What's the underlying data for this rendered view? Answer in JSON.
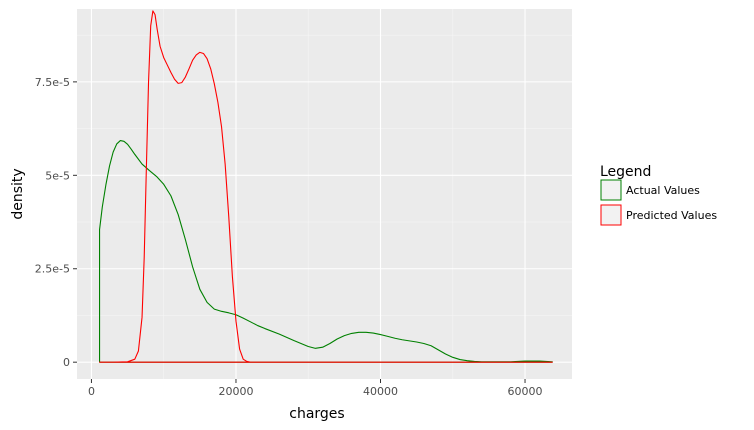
{
  "chart_data": {
    "type": "line",
    "xlabel": "charges",
    "ylabel": "density",
    "xlim": [
      -2000,
      66500
    ],
    "ylim": [
      -4.5e-06,
      9.45e-05
    ],
    "x_ticks": [
      0,
      20000,
      40000,
      60000
    ],
    "x_tick_labels": [
      "0",
      "20000",
      "40000",
      "60000"
    ],
    "y_ticks": [
      0,
      2.5e-05,
      5e-05,
      7.5e-05
    ],
    "y_tick_labels": [
      "0",
      "2.5e-5",
      "5e-5",
      "7.5e-5"
    ],
    "grid": true,
    "legend_position": "right",
    "legend": {
      "title": "Legend",
      "entries": [
        {
          "label": "Actual Values",
          "color": "#008000"
        },
        {
          "label": "Predicted Values",
          "color": "#ff0000"
        }
      ]
    },
    "series": [
      {
        "name": "Actual Values",
        "color": "#008000",
        "x": [
          1122,
          1122,
          1500,
          2000,
          2500,
          3000,
          3500,
          4000,
          4500,
          5000,
          5500,
          6000,
          7000,
          8000,
          9000,
          10000,
          11000,
          12000,
          13000,
          14000,
          15000,
          16000,
          17000,
          18000,
          19000,
          20000,
          21000,
          22000,
          23000,
          24000,
          26000,
          28000,
          30000,
          31000,
          32000,
          33000,
          34000,
          35000,
          36000,
          37000,
          38000,
          39000,
          40000,
          41000,
          42000,
          43000,
          44000,
          45000,
          46000,
          47000,
          48000,
          49000,
          50000,
          51000,
          52000,
          53000,
          54000,
          55000,
          56000,
          58000,
          60000,
          62000,
          63770
        ],
        "y": [
          0,
          3.55e-05,
          4.15e-05,
          4.75e-05,
          5.25e-05,
          5.62e-05,
          5.84e-05,
          5.93e-05,
          5.91e-05,
          5.83e-05,
          5.7e-05,
          5.56e-05,
          5.3e-05,
          5.13e-05,
          4.97e-05,
          4.76e-05,
          4.45e-05,
          3.95e-05,
          3.28e-05,
          2.55e-05,
          1.95e-05,
          1.6e-05,
          1.42e-05,
          1.36e-05,
          1.32e-05,
          1.27e-05,
          1.18e-05,
          1.08e-05,
          9.8e-06,
          9e-06,
          7.5e-06,
          5.8e-06,
          4.2e-06,
          3.7e-06,
          4e-06,
          5e-06,
          6.2e-06,
          7.1e-06,
          7.7e-06,
          8e-06,
          8e-06,
          7.8e-06,
          7.4e-06,
          6.9e-06,
          6.4e-06,
          6e-06,
          5.7e-06,
          5.4e-06,
          5e-06,
          4.4e-06,
          3.3e-06,
          2.2e-06,
          1.3e-06,
          7e-07,
          4e-07,
          2e-07,
          1e-07,
          1e-07,
          1e-07,
          1e-07,
          3e-07,
          3e-07,
          1e-07
        ]
      },
      {
        "name": "Predicted Values",
        "color": "#ff0000",
        "x": [
          1122,
          3000,
          5000,
          6000,
          6500,
          7000,
          7300,
          7600,
          7900,
          8200,
          8500,
          8800,
          9100,
          9500,
          10000,
          10500,
          11000,
          11500,
          12000,
          12500,
          13000,
          13500,
          14000,
          14500,
          15000,
          15500,
          16000,
          16500,
          17000,
          17500,
          18000,
          18500,
          19000,
          19500,
          20000,
          20500,
          21000,
          21500,
          22000,
          23000,
          30000,
          40000,
          50000,
          60000,
          63770
        ],
        "y": [
          0,
          0,
          1e-07,
          8e-07,
          3e-06,
          1.2e-05,
          2.8e-05,
          5.2e-05,
          7.5e-05,
          9e-05,
          9.4e-05,
          9.3e-05,
          8.9e-05,
          8.45e-05,
          8.15e-05,
          7.95e-05,
          7.75e-05,
          7.57e-05,
          7.46e-05,
          7.48e-05,
          7.63e-05,
          7.85e-05,
          8.08e-05,
          8.22e-05,
          8.29e-05,
          8.26e-05,
          8.12e-05,
          7.85e-05,
          7.45e-05,
          6.95e-05,
          6.3e-05,
          5.3e-05,
          3.9e-05,
          2.3e-05,
          1.1e-05,
          3.5e-06,
          8e-07,
          2e-07,
          0,
          0,
          0,
          0,
          0,
          0,
          0
        ]
      }
    ]
  }
}
